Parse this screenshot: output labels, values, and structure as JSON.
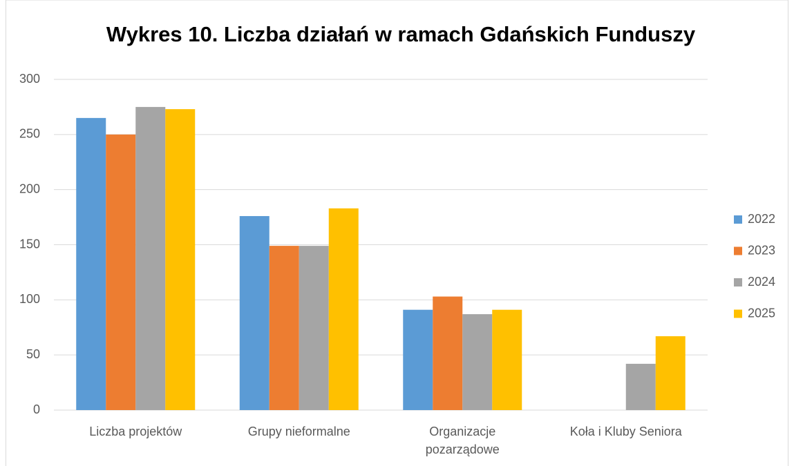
{
  "chart_data": {
    "type": "bar",
    "title": "Wykres 10. Liczba działań w ramach Gdańskich Funduszy",
    "categories": [
      "Liczba projektów",
      "Grupy nieformalne",
      "Organizacje pozarządowe",
      "Koła i Kluby Seniora"
    ],
    "series": [
      {
        "name": "2022",
        "color": "#5b9bd5",
        "values": [
          265,
          176,
          91,
          null
        ]
      },
      {
        "name": "2023",
        "color": "#ed7d31",
        "values": [
          250,
          149,
          103,
          null
        ]
      },
      {
        "name": "2024",
        "color": "#a5a5a5",
        "values": [
          275,
          149,
          87,
          42
        ]
      },
      {
        "name": "2025",
        "color": "#ffc000",
        "values": [
          273,
          183,
          91,
          67
        ]
      }
    ],
    "ylim": [
      0,
      300
    ],
    "yticks": [
      0,
      50,
      100,
      150,
      200,
      250,
      300
    ],
    "grid": true,
    "legend": "right"
  }
}
